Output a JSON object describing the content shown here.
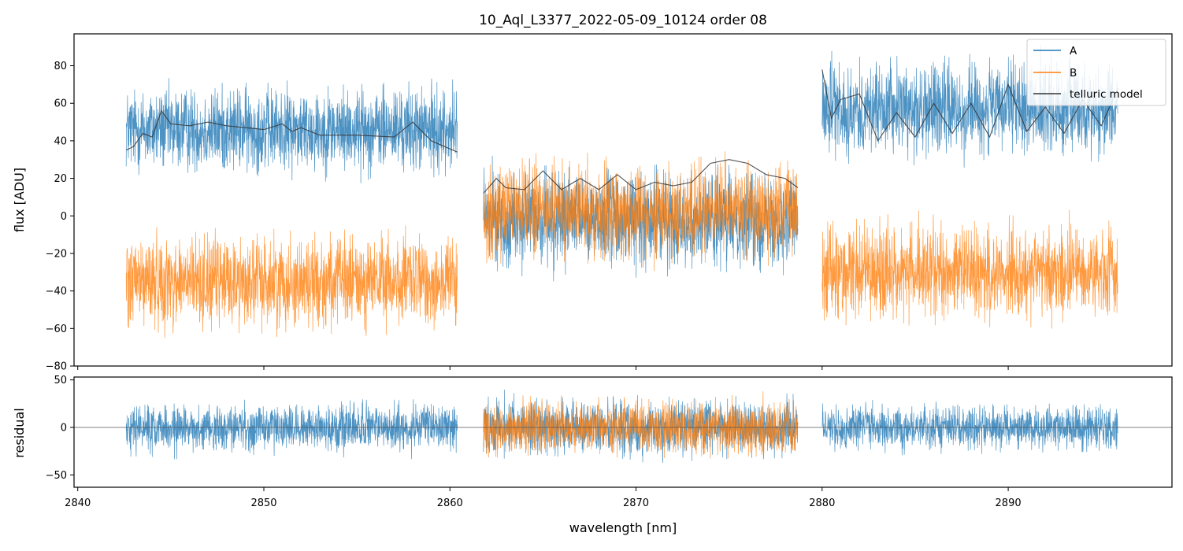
{
  "chart_data": [
    {
      "type": "line",
      "panel": "flux",
      "title": "10_Aql_L3377_2022-05-09_10124  order 08",
      "xlabel": "",
      "ylabel": "flux [ADU]",
      "xlim": [
        2839.8,
        2898.8
      ],
      "ylim": [
        -80,
        97
      ],
      "yticks": [
        -80,
        -60,
        -40,
        -20,
        0,
        20,
        40,
        60,
        80
      ],
      "xticks": [
        2840,
        2850,
        2860,
        2870,
        2880,
        2890
      ],
      "grid": false,
      "legend": "top-right",
      "legend_entries": [
        "A",
        "B",
        "telluric model"
      ],
      "colors": {
        "A": "#1f77b4",
        "B": "#ff7f0e",
        "telluric": "#333333"
      },
      "segments": [
        {
          "range": [
            2842.6,
            2860.4
          ],
          "A_mean": 46,
          "A_amp": 20,
          "B_mean": -35,
          "B_amp": 22
        },
        {
          "range": [
            2861.8,
            2878.7
          ],
          "A_mean": -2,
          "A_amp": 22,
          "B_mean": 3,
          "B_amp": 22
        },
        {
          "range": [
            2880.0,
            2895.9
          ],
          "A_mean": 57,
          "A_amp": 22,
          "B_mean": -30,
          "B_amp": 22
        }
      ],
      "series": [
        {
          "name": "telluric model",
          "segment": 0,
          "x": [
            2842.6,
            2843.0,
            2843.5,
            2844.0,
            2844.5,
            2845.0,
            2846.0,
            2847.0,
            2848.0,
            2850.0,
            2851.0,
            2851.5,
            2852.0,
            2853.0,
            2855.0,
            2857.0,
            2858.0,
            2859.0,
            2860.4
          ],
          "y": [
            35,
            37,
            44,
            42,
            56,
            49,
            48,
            50,
            48,
            46,
            49,
            45,
            47,
            43,
            43,
            42,
            50,
            40,
            34
          ]
        },
        {
          "name": "telluric model",
          "segment": 1,
          "x": [
            2861.8,
            2862.5,
            2863.0,
            2864.0,
            2865.0,
            2866.0,
            2867.0,
            2868.0,
            2869.0,
            2870.0,
            2871.0,
            2872.0,
            2873.0,
            2874.0,
            2875.0,
            2876.0,
            2877.0,
            2878.0,
            2878.7
          ],
          "y": [
            12,
            20,
            15,
            14,
            24,
            14,
            20,
            14,
            22,
            14,
            18,
            16,
            18,
            28,
            30,
            28,
            22,
            20,
            15
          ]
        },
        {
          "name": "telluric model",
          "segment": 2,
          "x": [
            2880.0,
            2880.5,
            2881.0,
            2882.0,
            2883.0,
            2884.0,
            2885.0,
            2886.0,
            2887.0,
            2888.0,
            2889.0,
            2890.0,
            2891.0,
            2892.0,
            2893.0,
            2894.0,
            2895.0,
            2895.9
          ],
          "y": [
            78,
            52,
            62,
            65,
            40,
            55,
            42,
            60,
            44,
            60,
            42,
            70,
            45,
            58,
            44,
            62,
            48,
            68
          ]
        }
      ]
    },
    {
      "type": "line",
      "panel": "residual",
      "xlabel": "wavelength [nm]",
      "ylabel": "residual",
      "xlim": [
        2839.8,
        2898.8
      ],
      "ylim": [
        -63,
        53
      ],
      "yticks": [
        -50,
        0,
        50
      ],
      "xticks": [
        2840,
        2850,
        2860,
        2870,
        2880,
        2890
      ],
      "zero_line": 0,
      "segments": [
        {
          "range": [
            2842.6,
            2860.4
          ],
          "A_amp": 22,
          "B_present": false
        },
        {
          "range": [
            2861.8,
            2878.7
          ],
          "A_amp": 26,
          "B_present": true,
          "B_amp": 24
        },
        {
          "range": [
            2880.0,
            2895.9
          ],
          "A_amp": 20,
          "B_present": false
        }
      ]
    }
  ]
}
